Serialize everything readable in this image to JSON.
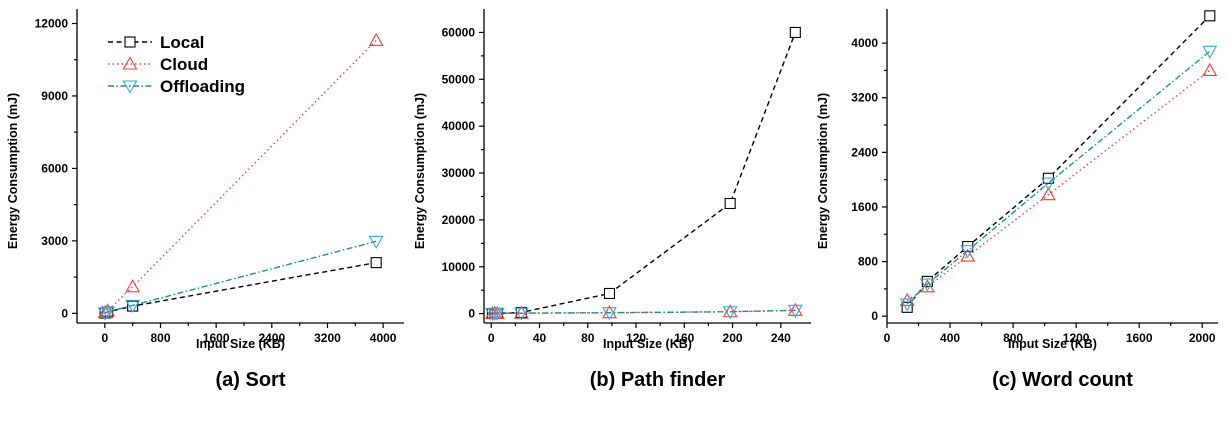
{
  "styles": {
    "Local": {
      "color": "#000000",
      "dash": "5,3.5",
      "marker": "square"
    },
    "Cloud": {
      "color": "#e8413a",
      "dash": "1.5,3",
      "marker": "triangle-up"
    },
    "Offloading": {
      "color": "#1e8f96",
      "dash": "6,2.5,1.5,2.5",
      "marker": "triangle-down",
      "marker_color": "#3fa7d6"
    }
  },
  "chart_data": [
    {
      "type": "line",
      "caption": "(a) Sort",
      "xlabel": "Input Size (KB)",
      "ylabel": "Energy Consumption (mJ)",
      "xlim": [
        -400,
        4300
      ],
      "ylim": [
        -400,
        12600
      ],
      "xticks": [
        0,
        800,
        1600,
        2400,
        3200,
        4000
      ],
      "yticks": [
        0,
        3000,
        6000,
        9000,
        12000
      ],
      "legend": {
        "position": "top-left",
        "entries": [
          "Local",
          "Cloud",
          "Offloading"
        ]
      },
      "series": [
        {
          "name": "Local",
          "x": [
            4,
            40,
            400,
            3900
          ],
          "y": [
            10,
            60,
            300,
            2100
          ]
        },
        {
          "name": "Cloud",
          "x": [
            4,
            40,
            400,
            3900
          ],
          "y": [
            30,
            100,
            1100,
            11300
          ]
        },
        {
          "name": "Offloading",
          "x": [
            4,
            40,
            400,
            3900
          ],
          "y": [
            10,
            60,
            330,
            2980
          ]
        }
      ]
    },
    {
      "type": "line",
      "caption": "(b) Path finder",
      "xlabel": "Input Size (KB)",
      "ylabel": "Energy Consumption (mJ)",
      "xlim": [
        -6,
        265
      ],
      "ylim": [
        -2000,
        65000
      ],
      "xticks": [
        0,
        40,
        80,
        120,
        160,
        200,
        240
      ],
      "yticks": [
        0,
        10000,
        20000,
        30000,
        40000,
        50000,
        60000
      ],
      "series": [
        {
          "name": "Local",
          "x": [
            1,
            3,
            5,
            25,
            98,
            198,
            252
          ],
          "y": [
            10,
            20,
            40,
            250,
            4300,
            23500,
            60000
          ]
        },
        {
          "name": "Cloud",
          "x": [
            1,
            3,
            5,
            25,
            98,
            198,
            252
          ],
          "y": [
            30,
            40,
            60,
            100,
            200,
            400,
            700
          ]
        },
        {
          "name": "Offloading",
          "x": [
            1,
            3,
            5,
            25,
            98,
            198,
            252
          ],
          "y": [
            30,
            40,
            60,
            100,
            200,
            400,
            700
          ]
        }
      ]
    },
    {
      "type": "line",
      "caption": "(c) Word count",
      "xlabel": "Input Size (KB)",
      "ylabel": "Energy Consumption (mJ)",
      "xlim": [
        0,
        2100
      ],
      "ylim": [
        -100,
        4500
      ],
      "xticks": [
        0,
        400,
        800,
        1200,
        1600,
        2000
      ],
      "yticks": [
        0,
        800,
        1600,
        2400,
        3200,
        4000
      ],
      "series": [
        {
          "name": "Local",
          "x": [
            128,
            256,
            512,
            1024,
            2048
          ],
          "y": [
            130,
            510,
            1020,
            2020,
            4400
          ]
        },
        {
          "name": "Cloud",
          "x": [
            128,
            256,
            512,
            1024,
            2048
          ],
          "y": [
            230,
            430,
            880,
            1780,
            3600
          ]
        },
        {
          "name": "Offloading",
          "x": [
            128,
            256,
            512,
            1024,
            2048
          ],
          "y": [
            180,
            470,
            960,
            1950,
            3880
          ]
        }
      ]
    }
  ]
}
